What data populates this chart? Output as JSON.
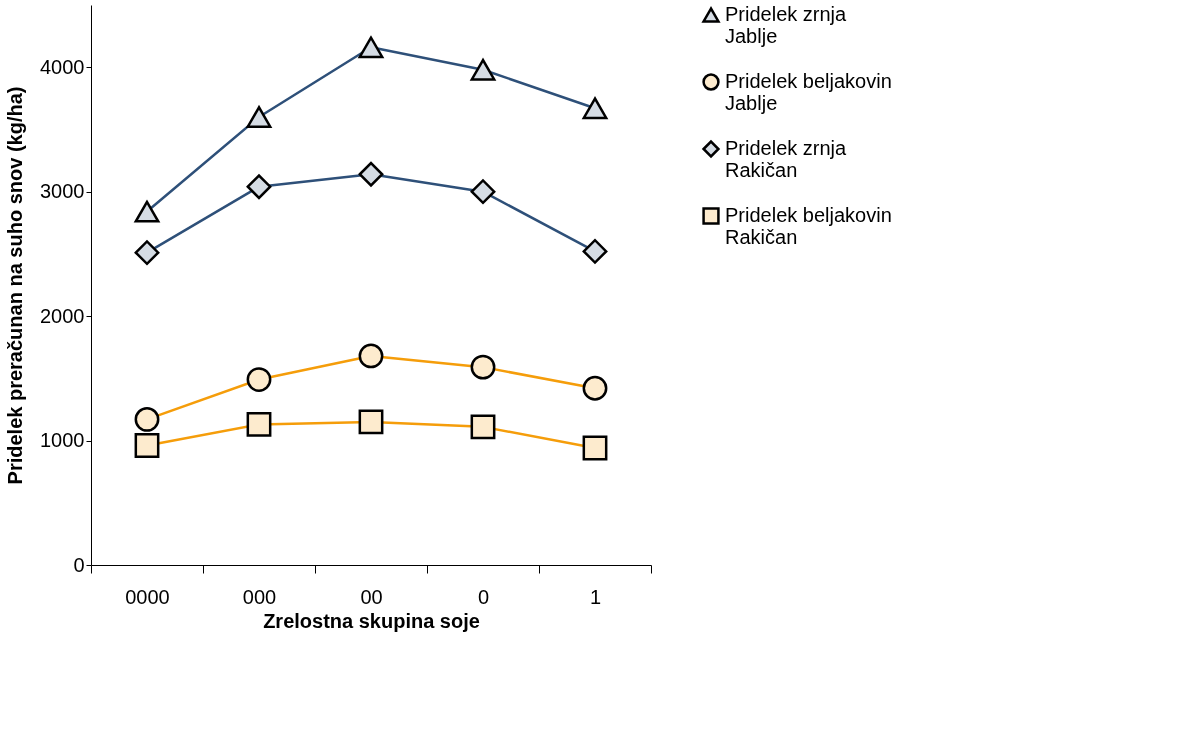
{
  "chart_data": {
    "type": "line",
    "xlabel": "Zrelostna skupina soje",
    "ylabel": "Pridelek preračunan na suho snov (kg/ha)",
    "categories": [
      "0000",
      "000",
      "00",
      "0",
      "1"
    ],
    "series": [
      {
        "name": "Pridelek zrnja Jablje",
        "color": "#2e5079",
        "marker": "triangle",
        "values": [
          2840,
          3600,
          4160,
          3980,
          3670
        ]
      },
      {
        "name": "Pridelek beljakovin Jablje",
        "color": "#f59d0a",
        "marker": "circle",
        "values": [
          1170,
          1490,
          1680,
          1590,
          1420
        ]
      },
      {
        "name": "Pridelek zrnja Rakičan",
        "color": "#2e5079",
        "marker": "diamond",
        "values": [
          2510,
          3040,
          3140,
          3000,
          2520
        ]
      },
      {
        "name": "Pridelek beljakovin Rakičan",
        "color": "#f59d0a",
        "marker": "square",
        "values": [
          960,
          1130,
          1150,
          1110,
          940
        ]
      }
    ],
    "ylim": [
      0,
      4500
    ],
    "yticks": [
      0,
      1000,
      2000,
      3000,
      4000
    ],
    "grid": false,
    "legend": "top right",
    "line_style": "solid"
  }
}
